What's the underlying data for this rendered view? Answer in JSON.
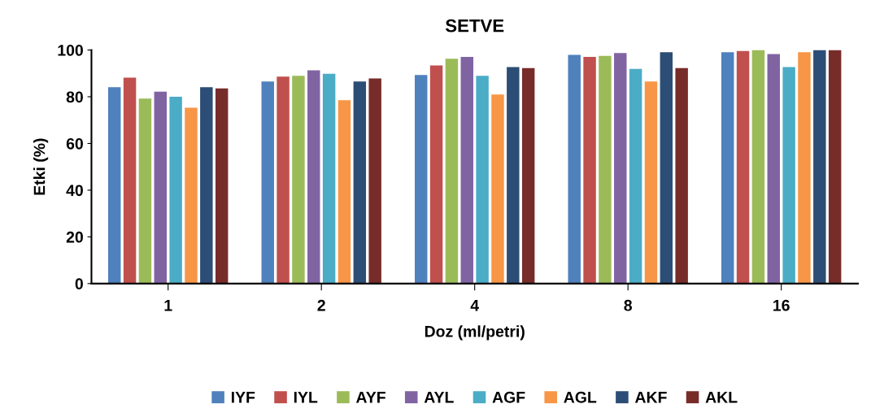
{
  "chart_data": {
    "type": "bar",
    "title": "SETVE",
    "xlabel": "Doz (ml/petri)",
    "ylabel": "Etki (%)",
    "categories": [
      "1",
      "2",
      "4",
      "8",
      "16"
    ],
    "ylim": [
      0,
      100
    ],
    "yticks": [
      0,
      20,
      40,
      60,
      80,
      100
    ],
    "grid": false,
    "legend": "bottom",
    "series": [
      {
        "name": "IYF",
        "color": "#4f81bd",
        "values": [
          84.1,
          86.5,
          89.3,
          97.9,
          99.1
        ]
      },
      {
        "name": "IYL",
        "color": "#c0504d",
        "values": [
          88.2,
          88.6,
          93.4,
          97.1,
          99.6
        ]
      },
      {
        "name": "AYF",
        "color": "#9bbb59",
        "values": [
          79.2,
          89.0,
          96.3,
          97.5,
          100
        ]
      },
      {
        "name": "AYL",
        "color": "#8064a2",
        "values": [
          82.2,
          91.3,
          97.1,
          98.7,
          98.3
        ]
      },
      {
        "name": "AGF",
        "color": "#4bacc6",
        "values": [
          80.0,
          89.8,
          89.0,
          91.9,
          92.7
        ]
      },
      {
        "name": "AGL",
        "color": "#f79646",
        "values": [
          75.3,
          78.5,
          81.0,
          86.5,
          99.1
        ]
      },
      {
        "name": "AKF",
        "color": "#2c4d75",
        "values": [
          84.1,
          86.5,
          92.7,
          99.1,
          100
        ]
      },
      {
        "name": "AKL",
        "color": "#772c2a",
        "values": [
          83.6,
          87.8,
          92.3,
          92.3,
          100
        ]
      }
    ]
  }
}
